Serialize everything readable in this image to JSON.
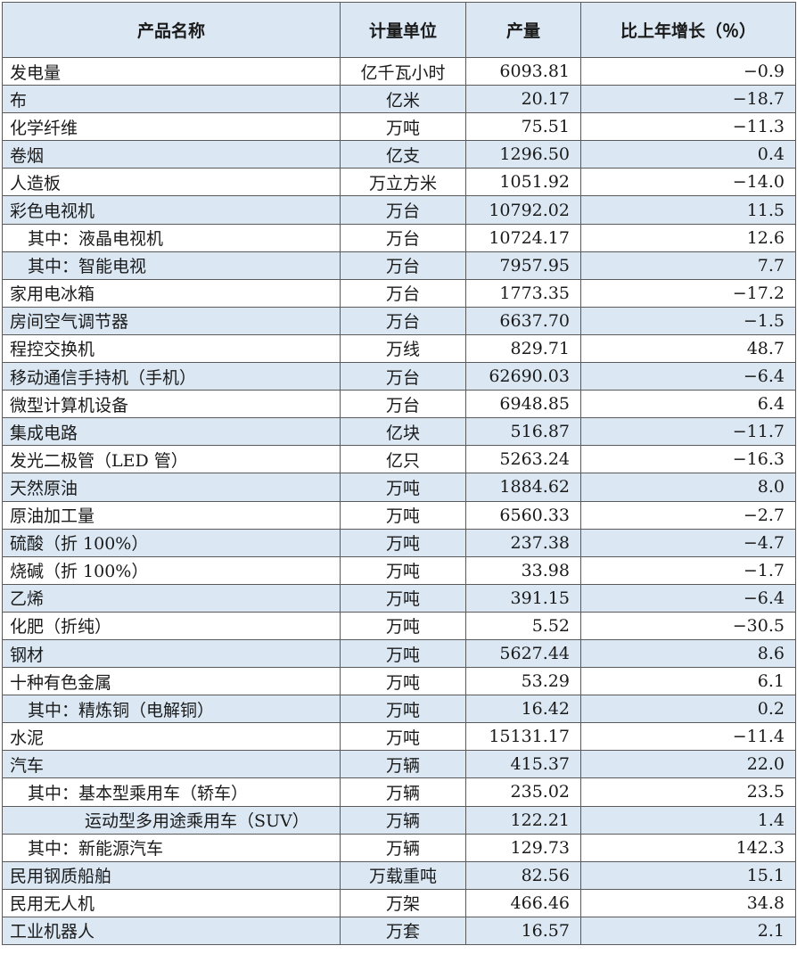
{
  "table": {
    "headers": [
      "产品名称",
      "计量单位",
      "产量",
      "比上年增长（％）"
    ],
    "rows": [
      {
        "name": "发电量",
        "unit": "亿千瓦小时",
        "output": "6093.81",
        "growth": "−0.9",
        "indent": 0
      },
      {
        "name": "布",
        "unit": "亿米",
        "output": "20.17",
        "growth": "−18.7",
        "indent": 0
      },
      {
        "name": "化学纤维",
        "unit": "万吨",
        "output": "75.51",
        "growth": "−11.3",
        "indent": 0
      },
      {
        "name": "卷烟",
        "unit": "亿支",
        "output": "1296.50",
        "growth": "0.4",
        "indent": 0
      },
      {
        "name": "人造板",
        "unit": "万立方米",
        "output": "1051.92",
        "growth": "−14.0",
        "indent": 0
      },
      {
        "name": "彩色电视机",
        "unit": "万台",
        "output": "10792.02",
        "growth": "11.5",
        "indent": 0
      },
      {
        "name": "其中：液晶电视机",
        "unit": "万台",
        "output": "10724.17",
        "growth": "12.6",
        "indent": 1
      },
      {
        "name": "其中：智能电视",
        "unit": "万台",
        "output": "7957.95",
        "growth": "7.7",
        "indent": 1
      },
      {
        "name": "家用电冰箱",
        "unit": "万台",
        "output": "1773.35",
        "growth": "−17.2",
        "indent": 0
      },
      {
        "name": "房间空气调节器",
        "unit": "万台",
        "output": "6637.70",
        "growth": "−1.5",
        "indent": 0
      },
      {
        "name": "程控交换机",
        "unit": "万线",
        "output": "829.71",
        "growth": "48.7",
        "indent": 0
      },
      {
        "name": "移动通信手持机（手机）",
        "unit": "万台",
        "output": "62690.03",
        "growth": "−6.4",
        "indent": 0
      },
      {
        "name": "微型计算机设备",
        "unit": "万台",
        "output": "6948.85",
        "growth": "6.4",
        "indent": 0
      },
      {
        "name": "集成电路",
        "unit": "亿块",
        "output": "516.87",
        "growth": "−11.7",
        "indent": 0
      },
      {
        "name": "发光二极管（LED 管）",
        "unit": "亿只",
        "output": "5263.24",
        "growth": "−16.3",
        "indent": 0
      },
      {
        "name": "天然原油",
        "unit": "万吨",
        "output": "1884.62",
        "growth": "8.0",
        "indent": 0
      },
      {
        "name": "原油加工量",
        "unit": "万吨",
        "output": "6560.33",
        "growth": "−2.7",
        "indent": 0
      },
      {
        "name": "硫酸（折 100%）",
        "unit": "万吨",
        "output": "237.38",
        "growth": "−4.7",
        "indent": 0
      },
      {
        "name": "烧碱（折 100%）",
        "unit": "万吨",
        "output": "33.98",
        "growth": "−1.7",
        "indent": 0
      },
      {
        "name": "乙烯",
        "unit": "万吨",
        "output": "391.15",
        "growth": "−6.4",
        "indent": 0
      },
      {
        "name": "化肥（折纯）",
        "unit": "万吨",
        "output": "5.52",
        "growth": "−30.5",
        "indent": 0
      },
      {
        "name": "钢材",
        "unit": "万吨",
        "output": "5627.44",
        "growth": "8.6",
        "indent": 0
      },
      {
        "name": "十种有色金属",
        "unit": "万吨",
        "output": "53.29",
        "growth": "6.1",
        "indent": 0
      },
      {
        "name": "其中：精炼铜（电解铜）",
        "unit": "万吨",
        "output": "16.42",
        "growth": "0.2",
        "indent": 1
      },
      {
        "name": "水泥",
        "unit": "万吨",
        "output": "15131.17",
        "growth": "−11.4",
        "indent": 0
      },
      {
        "name": "汽车",
        "unit": "万辆",
        "output": "415.37",
        "growth": "22.0",
        "indent": 0
      },
      {
        "name": "其中：基本型乘用车（轿车）",
        "unit": "万辆",
        "output": "235.02",
        "growth": "23.5",
        "indent": 1
      },
      {
        "name": "运动型多用途乘用车（SUV）",
        "unit": "万辆",
        "output": "122.21",
        "growth": "1.4",
        "indent": 2
      },
      {
        "name": "其中：新能源汽车",
        "unit": "万辆",
        "output": "129.73",
        "growth": "142.3",
        "indent": 1
      },
      {
        "name": "民用钢质船舶",
        "unit": "万载重吨",
        "output": "82.56",
        "growth": "15.1",
        "indent": 0
      },
      {
        "name": "民用无人机",
        "unit": "万架",
        "output": "466.46",
        "growth": "34.8",
        "indent": 0
      },
      {
        "name": "工业机器人",
        "unit": "万套",
        "output": "16.57",
        "growth": "2.1",
        "indent": 0
      }
    ]
  }
}
